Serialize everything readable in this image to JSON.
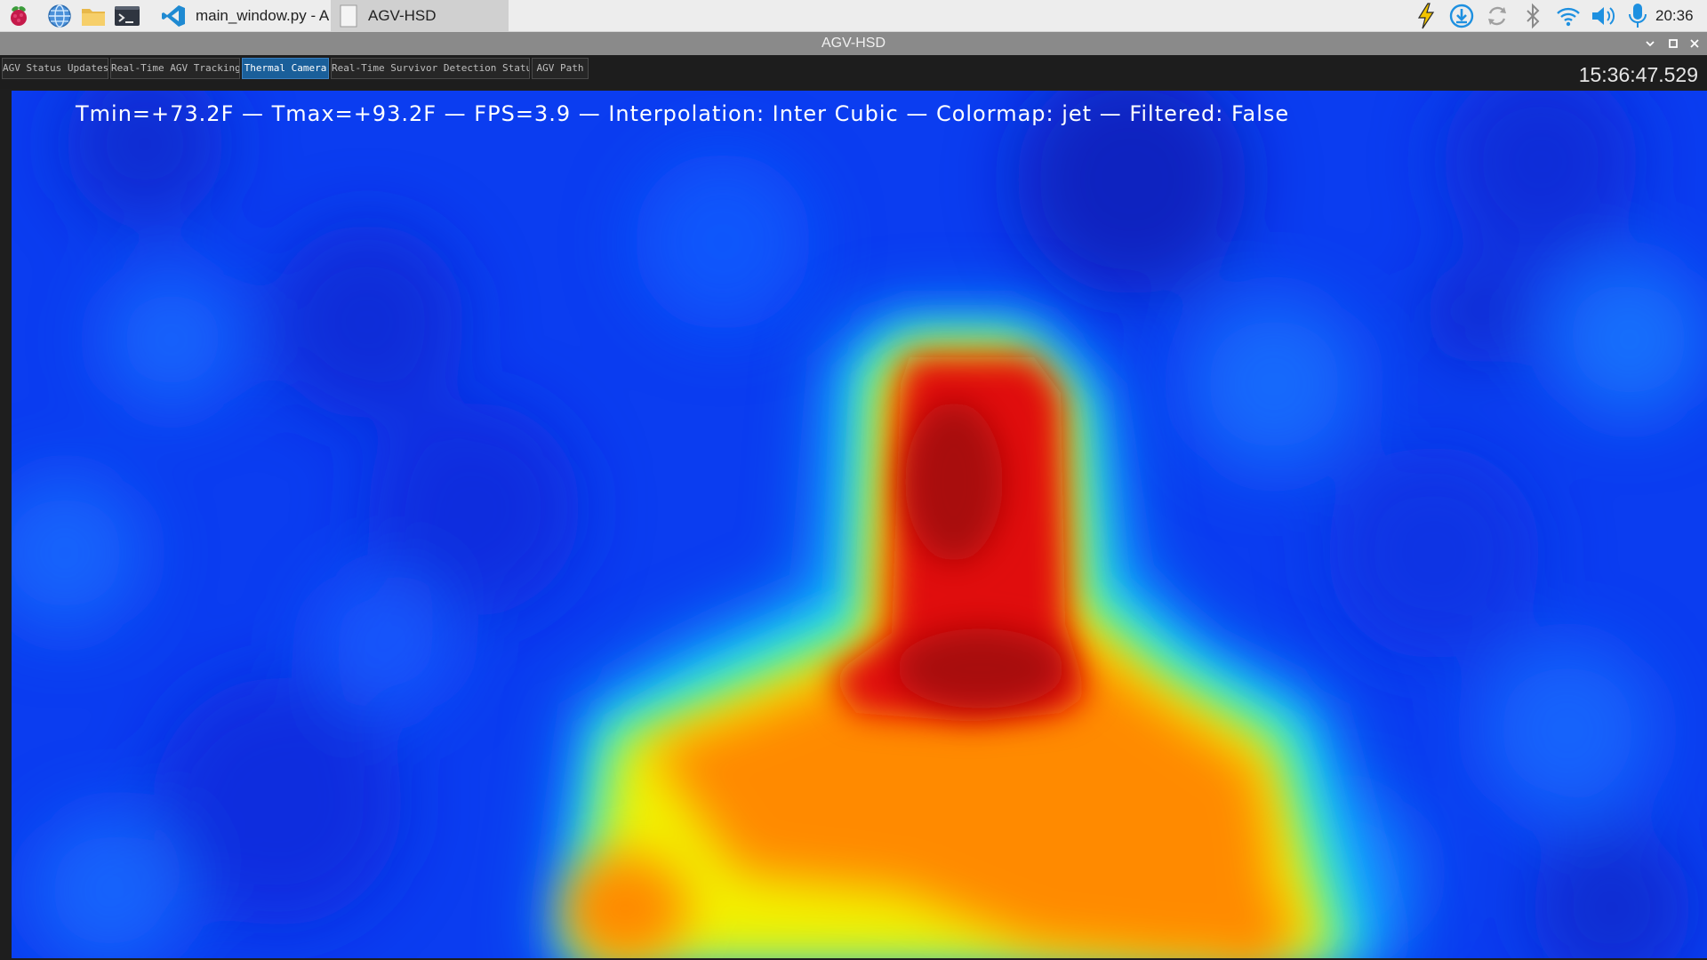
{
  "taskbar": {
    "launchers": [
      {
        "icon": "raspberry-menu-icon"
      },
      {
        "icon": "web-browser-icon"
      },
      {
        "icon": "file-manager-icon"
      },
      {
        "icon": "terminal-icon"
      }
    ],
    "tasks": [
      {
        "label": "main_window.py - A...",
        "icon": "vscode-icon",
        "active": false
      },
      {
        "label": "AGV-HSD",
        "icon": "window-icon",
        "active": true
      }
    ],
    "tray": [
      {
        "icon": "power-bolt-icon",
        "color": "#f2c400"
      },
      {
        "icon": "download-icon",
        "color": "#1e90e0"
      },
      {
        "icon": "sync-icon",
        "color": "#9a9a9a"
      },
      {
        "icon": "bluetooth-icon",
        "color": "#8a8a8a"
      },
      {
        "icon": "wifi-icon",
        "color": "#1e90e0"
      },
      {
        "icon": "volume-icon",
        "color": "#1e90e0"
      },
      {
        "icon": "microphone-icon",
        "color": "#1e90e0"
      }
    ],
    "clock": "20:36"
  },
  "window": {
    "title": "AGV-HSD"
  },
  "tabs": [
    {
      "label": "AGV Status Updates",
      "selected": false
    },
    {
      "label": "Real-Time AGV Tracking",
      "selected": false
    },
    {
      "label": "Thermal Camera",
      "selected": true
    },
    {
      "label": "Real-Time Survivor Detection Status",
      "selected": false
    },
    {
      "label": "AGV Path",
      "selected": false
    }
  ],
  "app_clock": "15:36:47.529",
  "thermal": {
    "overlay_text": "Tmin=+73.2F — Tmax=+93.2F — FPS=3.9 — Interpolation: Inter Cubic — Colormap: jet — Filtered: False",
    "colormap": "jet",
    "colors": {
      "cold": "#0b3df0",
      "cool": "#18a8ff",
      "mid": "#20f0e0",
      "warm": "#f2f000",
      "hot": "#ff8a00",
      "hottest": "#e01010"
    }
  }
}
